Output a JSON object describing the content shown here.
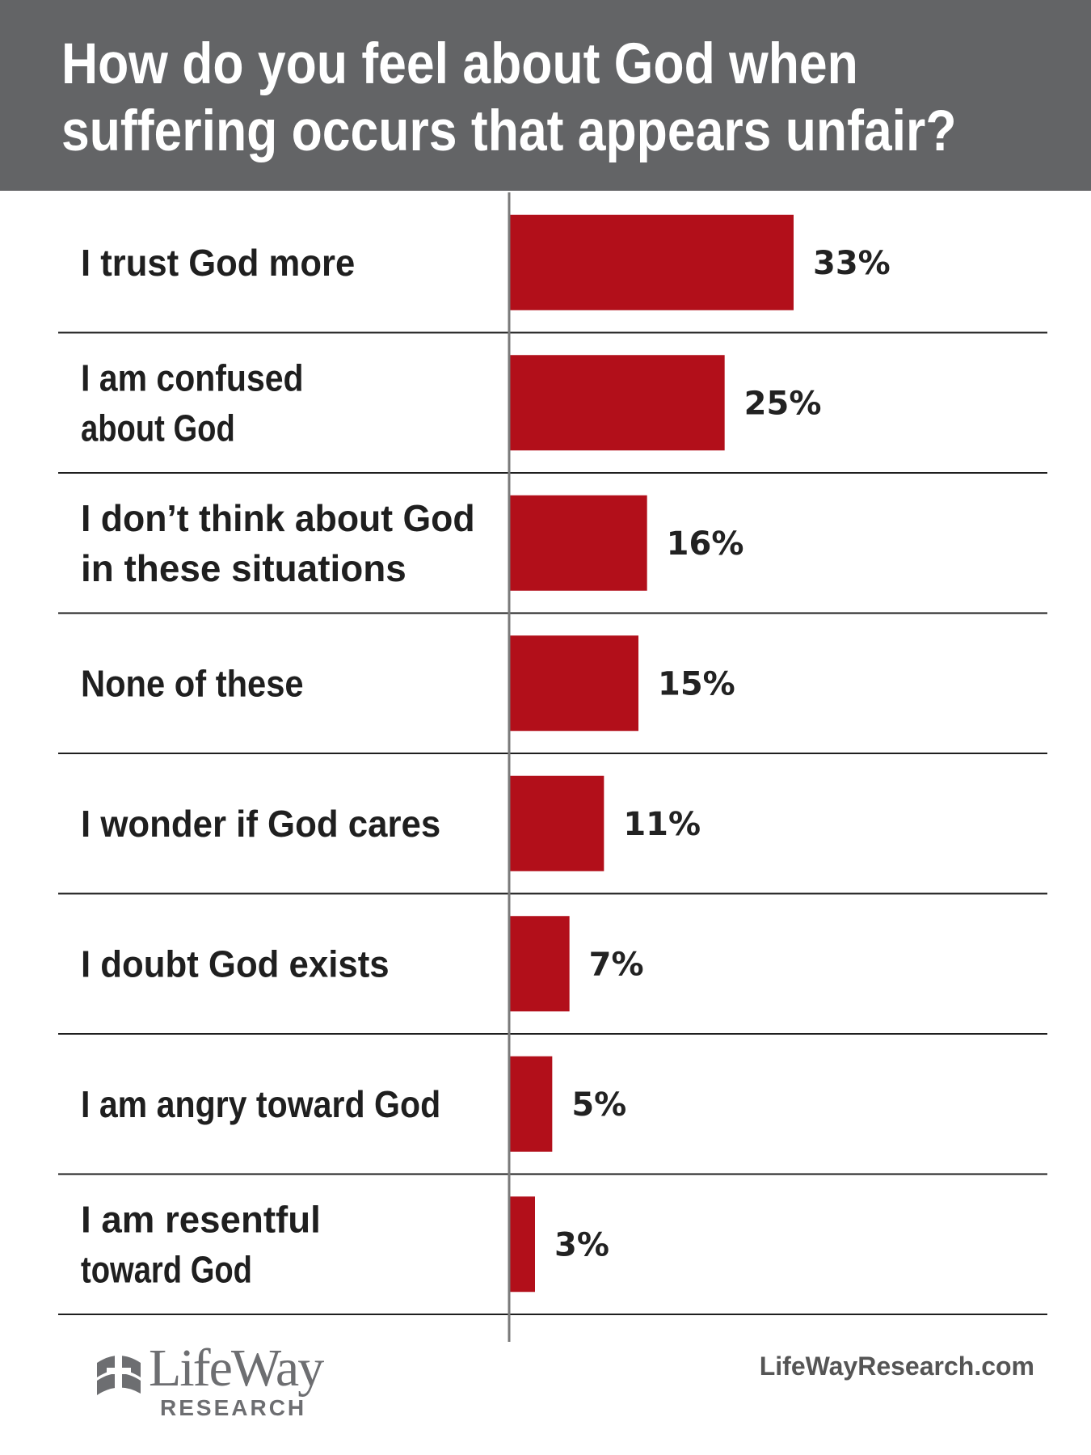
{
  "chart_data": {
    "type": "bar",
    "orientation": "horizontal",
    "title": "How do you feel about God when suffering occurs that appears unfair?",
    "title_lines": [
      "How do you feel about God when",
      "suffering occurs that appears unfair?"
    ],
    "categories": [
      "I trust God more",
      "I am confused about God",
      "I don’t think about God in these situations",
      "None of these",
      "I wonder if God cares",
      "I doubt God exists",
      "I am angry toward God",
      "I am resentful toward God"
    ],
    "category_lines": [
      [
        "I trust God more"
      ],
      [
        "I am confused",
        "about God"
      ],
      [
        "I don’t think about God",
        "in these situations"
      ],
      [
        "None of these"
      ],
      [
        "I wonder if God cares"
      ],
      [
        "I doubt God exists"
      ],
      [
        "I am angry toward God"
      ],
      [
        "I am resentful",
        "toward God"
      ]
    ],
    "values": [
      33,
      25,
      16,
      15,
      11,
      7,
      5,
      3
    ],
    "value_labels": [
      "33%",
      "25%",
      "16%",
      "15%",
      "11%",
      "7%",
      "5%",
      "3%"
    ],
    "unit": "%",
    "xlim": [
      0,
      33
    ],
    "grid": false,
    "legend": "none",
    "bar_color": "#b20f1a",
    "header_color": "#636466",
    "separator_color": "#1f1f1f",
    "axis_color": "#7a7a7a"
  },
  "footer": {
    "logo_text": "LifeWay",
    "logo_subtext": "RESEARCH",
    "website": "LifeWayResearch.com"
  }
}
